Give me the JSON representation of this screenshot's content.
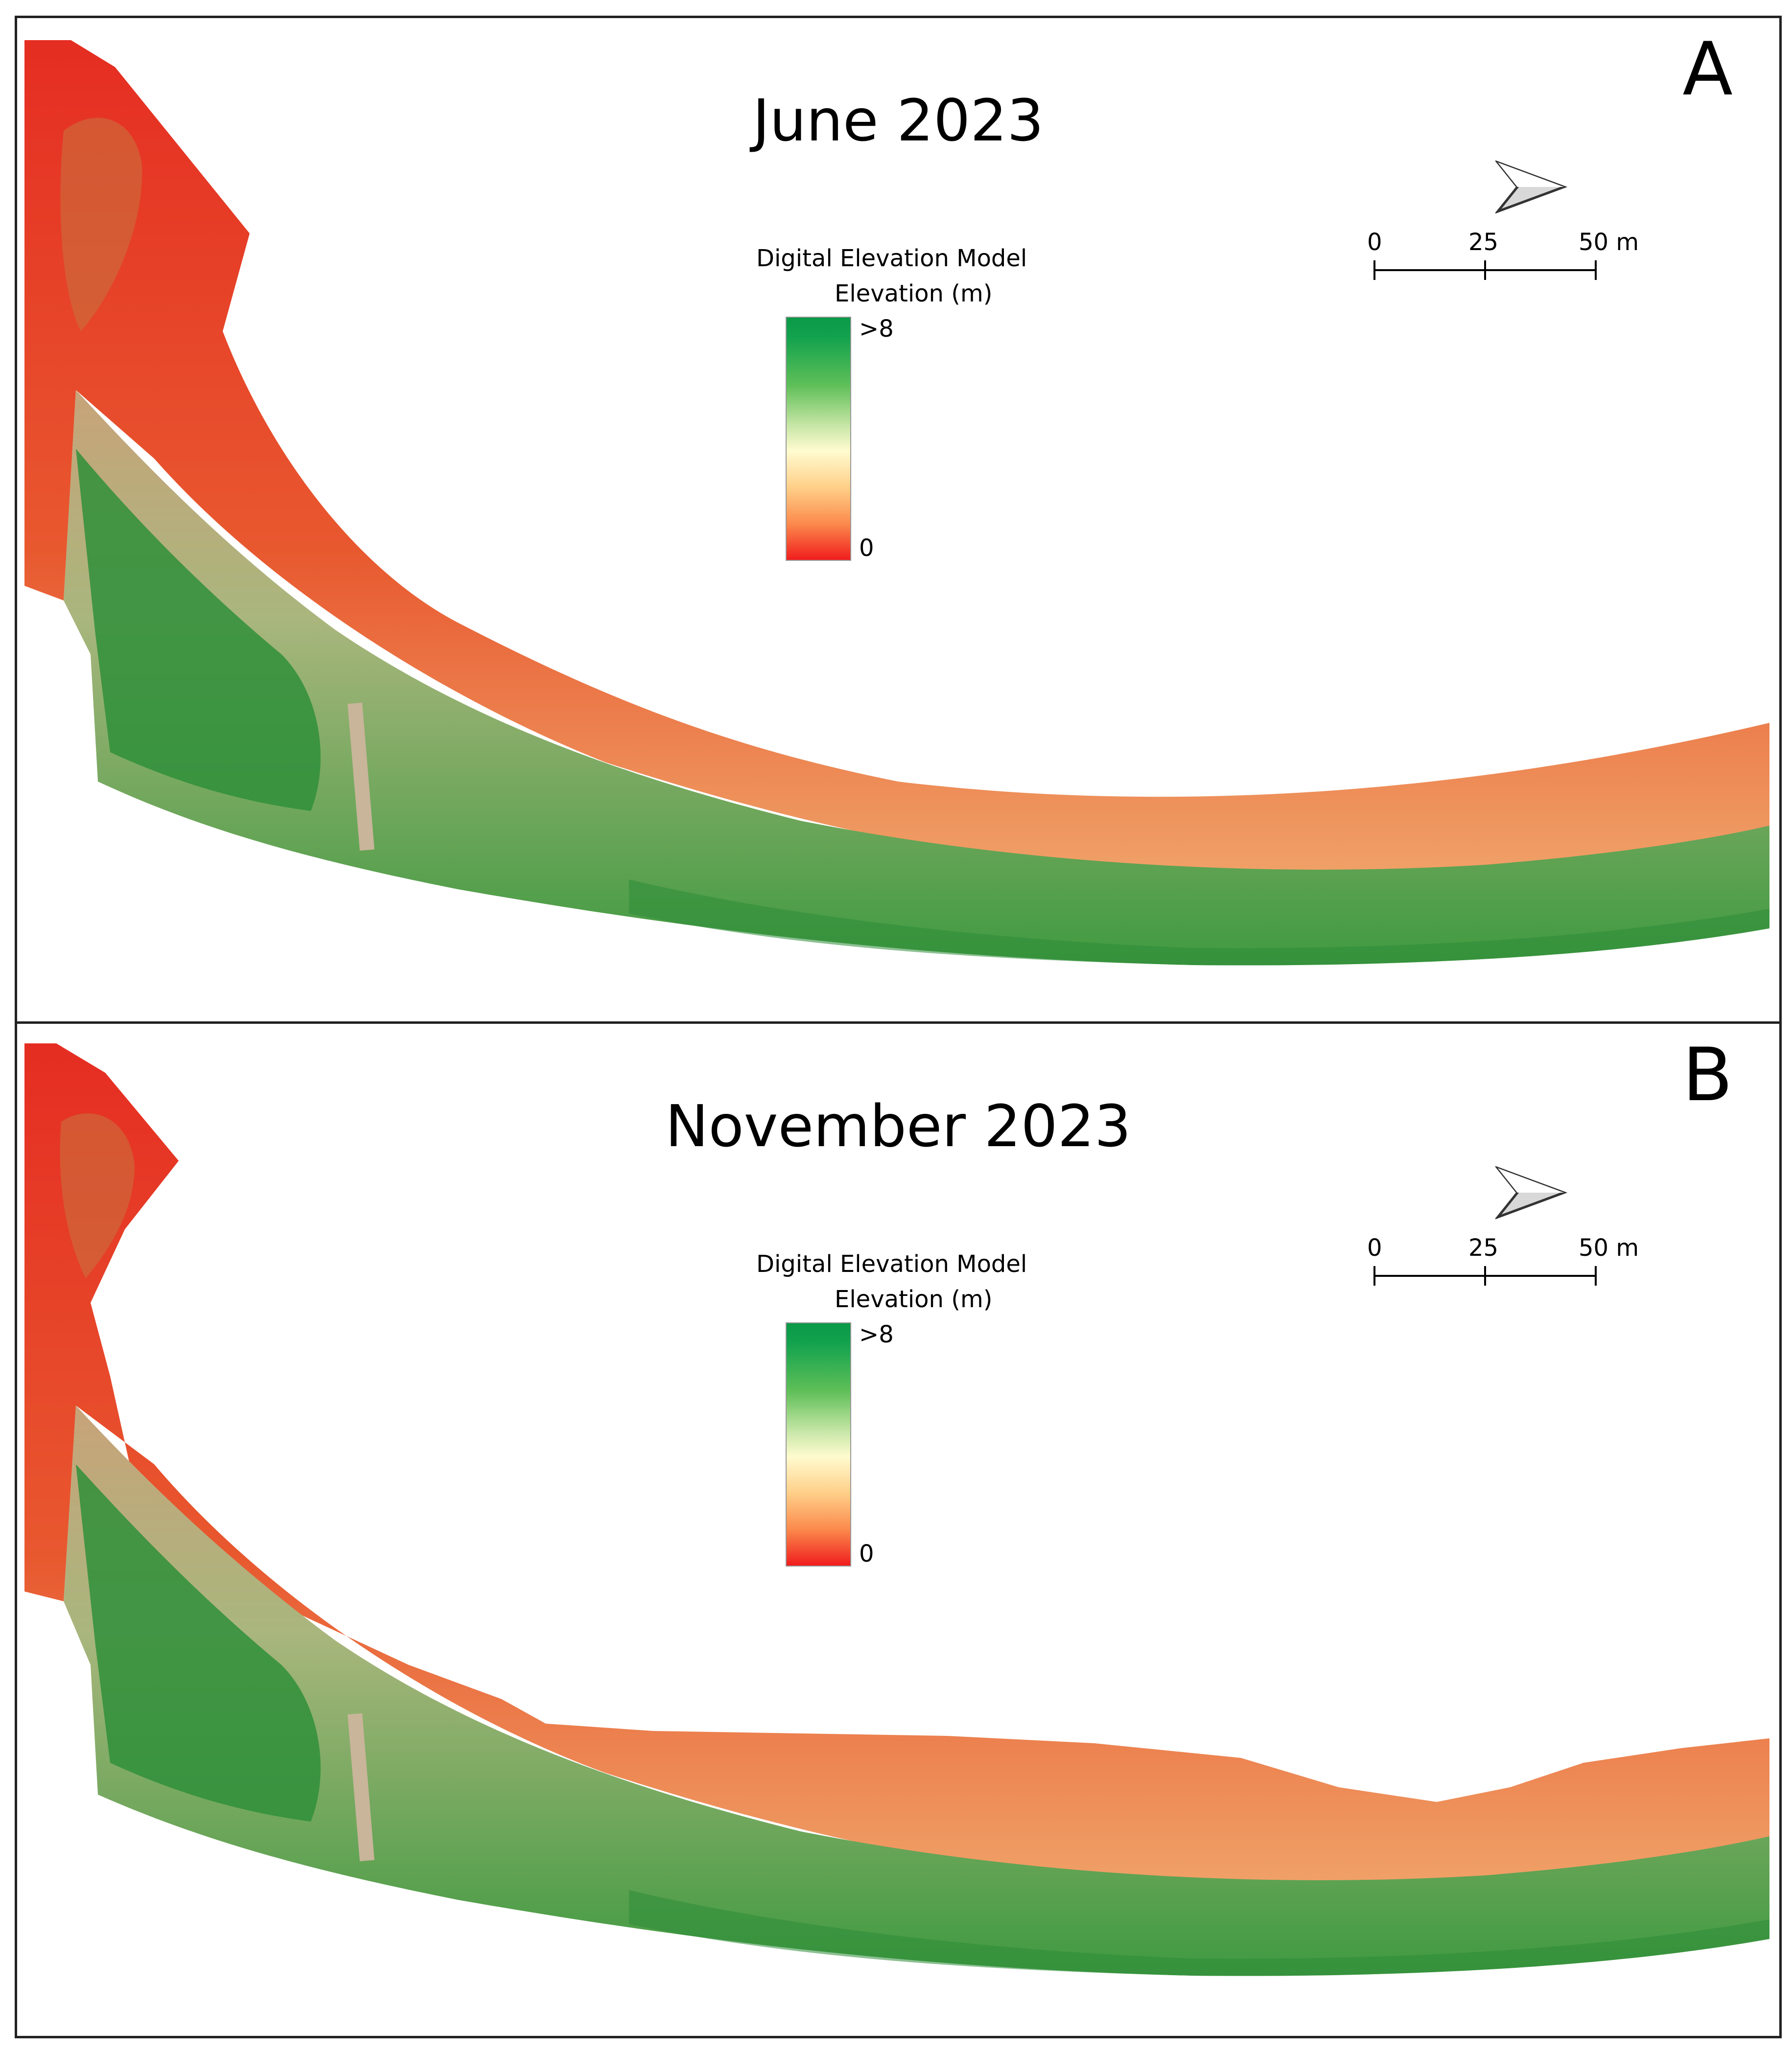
{
  "panels": [
    {
      "letter": "A",
      "title": "June 2023"
    },
    {
      "letter": "B",
      "title": "November 2023"
    }
  ],
  "legend": {
    "title_line1": "Digital Elevation Model",
    "title_line2": "Elevation (m)",
    "max_label": ">8",
    "min_label": "0",
    "colors": [
      "#0a9a48",
      "#fffbd0",
      "#f01d1d"
    ]
  },
  "scale_bar": {
    "labels": [
      "0",
      "25",
      "50 m"
    ]
  },
  "north_arrow": "north-arrow-icon",
  "colors": {
    "dry_sand": "#e8402a",
    "vegetation": "#3c9a3e",
    "frame": "#222222"
  }
}
